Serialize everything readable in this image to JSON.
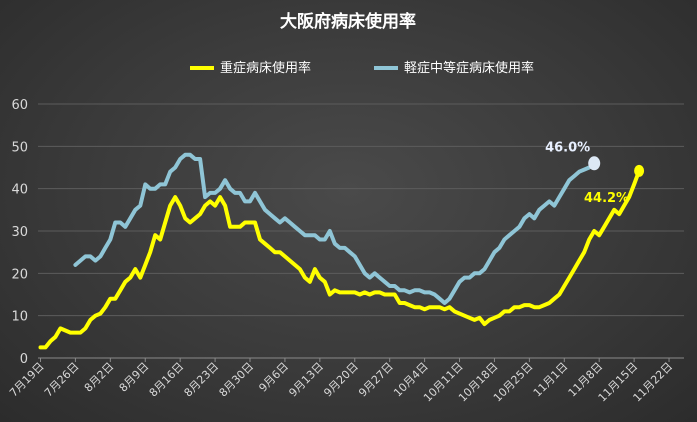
{
  "chart_data": {
    "type": "line",
    "title": "大阪府病床使用率",
    "xlabel": "",
    "ylabel": "",
    "ylim": [
      0,
      60
    ],
    "yticks": [
      0,
      10,
      20,
      30,
      40,
      50,
      60
    ],
    "grid": true,
    "legend_position": "top",
    "x_labels": [
      "7月19日",
      "7月26日",
      "8月2日",
      "8月9日",
      "8月16日",
      "8月23日",
      "8月30日",
      "9月6日",
      "9月13日",
      "9月20日",
      "9月27日",
      "10月4日",
      "10月11日",
      "10月18日",
      "10月25日",
      "11月1日",
      "11月8日",
      "11月15日",
      "11月22日"
    ],
    "series": [
      {
        "name": "重症病床使用率",
        "color": "#ffff00",
        "start_day": 0,
        "values": [
          2.5,
          2.5,
          4,
          5,
          7,
          6.5,
          6,
          6,
          6,
          7,
          9,
          10,
          10.5,
          12,
          14,
          14,
          16,
          18,
          19,
          21,
          19,
          22,
          25,
          29,
          28,
          32,
          36,
          38,
          36,
          33,
          32,
          33,
          34,
          36,
          37,
          36,
          38,
          36,
          31,
          31,
          31,
          32,
          32,
          32,
          28,
          27,
          26,
          25,
          25,
          24,
          23,
          22,
          21,
          19,
          18,
          21,
          19,
          18,
          15,
          16,
          15.5,
          15.5,
          15.5,
          15.5,
          15,
          15.5,
          15,
          15.5,
          15.5,
          15,
          15,
          15,
          13,
          13,
          12.5,
          12,
          12,
          11.5,
          12,
          12,
          12,
          11.5,
          12,
          11,
          10.5,
          10,
          9.5,
          9,
          9.5,
          8,
          9,
          9.5,
          10,
          11,
          11,
          12,
          12,
          12.5,
          12.5,
          12,
          12,
          12.5,
          13,
          14,
          15,
          17,
          19,
          21,
          23,
          25,
          28,
          30,
          29,
          31,
          33,
          35,
          34,
          36,
          38,
          41,
          44.2
        ]
      },
      {
        "name": "軽症中等症病床使用率",
        "color": "#8fc5d6",
        "start_day": 7,
        "values": [
          22,
          23,
          24,
          24,
          23,
          24,
          26,
          28,
          32,
          32,
          31,
          33,
          35,
          36,
          41,
          40,
          40,
          41,
          41,
          44,
          45,
          47,
          48,
          48,
          47,
          47,
          38,
          39,
          39,
          40,
          42,
          40,
          39,
          39,
          37,
          37,
          39,
          37,
          35,
          34,
          33,
          32,
          33,
          32,
          31,
          30,
          29,
          29,
          29,
          28,
          28,
          30,
          27,
          26,
          26,
          25,
          24,
          22,
          20,
          19,
          20,
          19,
          18,
          17,
          17,
          16,
          16,
          15.5,
          16,
          16,
          15.5,
          15.5,
          15,
          14,
          13,
          14,
          16,
          18,
          19,
          19,
          20,
          20,
          21,
          23,
          25,
          26,
          28,
          29,
          30,
          31,
          33,
          34,
          33,
          35,
          36,
          37,
          36,
          38,
          40,
          42,
          43,
          44,
          44.5,
          45,
          46
        ]
      }
    ],
    "annotations": [
      {
        "series": 1,
        "text": "46.0%",
        "color": "#e8f0ff"
      },
      {
        "series": 0,
        "text": "44.2%",
        "color": "#ffff00"
      }
    ]
  }
}
